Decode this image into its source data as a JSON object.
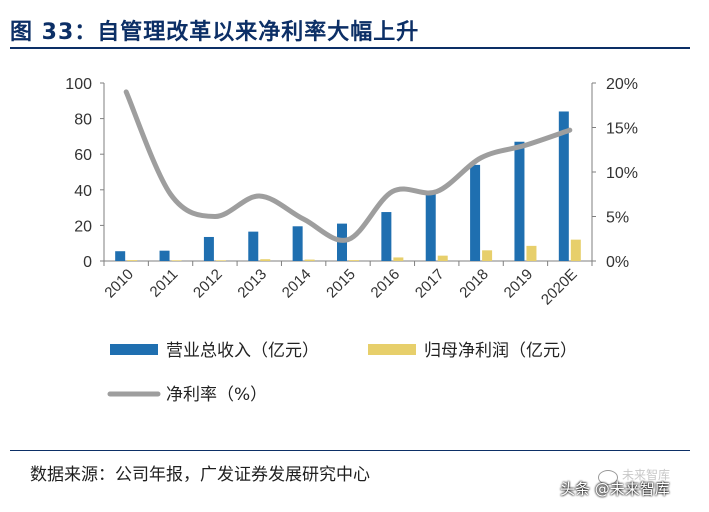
{
  "figure": {
    "title": "图 33：自管理改革以来净利率大幅上升",
    "source": "数据来源：公司年报，广发证券发展研究中心",
    "watermark": "头条 @未来智库",
    "watermark_top": "未来智库"
  },
  "chart_data": {
    "type": "bar",
    "categories": [
      "2010",
      "2011",
      "2012",
      "2013",
      "2014",
      "2015",
      "2016",
      "2017",
      "2018",
      "2019",
      "2020E"
    ],
    "left_axis": {
      "ylim": [
        0,
        100
      ],
      "ticks": [
        "0",
        "20",
        "40",
        "60",
        "80",
        "100"
      ]
    },
    "right_axis": {
      "ylim": [
        0,
        20
      ],
      "ticks": [
        "0%",
        "5%",
        "10%",
        "15%",
        "20%"
      ]
    },
    "grid": false,
    "legend_position": "bottom",
    "series": [
      {
        "name": "营业总收入（亿元）",
        "type": "bar",
        "axis": "left",
        "color": "#1f6fb0",
        "values": [
          5.5,
          5.8,
          13.5,
          16.5,
          19.5,
          21,
          27.5,
          38,
          54,
          67,
          84
        ]
      },
      {
        "name": "归母净利润（亿元）",
        "type": "bar",
        "axis": "left",
        "color": "#e7cf6b",
        "values": [
          0.5,
          0.4,
          0.4,
          1.0,
          0.8,
          0.5,
          2.0,
          3.0,
          6.0,
          8.5,
          12.0
        ]
      },
      {
        "name": "净利率（%）",
        "type": "line",
        "axis": "right",
        "color": "#9e9e9e",
        "values": [
          19,
          7.5,
          5,
          7.3,
          4.7,
          2.4,
          7.8,
          7.8,
          11.6,
          13.0,
          14.7
        ]
      }
    ]
  }
}
